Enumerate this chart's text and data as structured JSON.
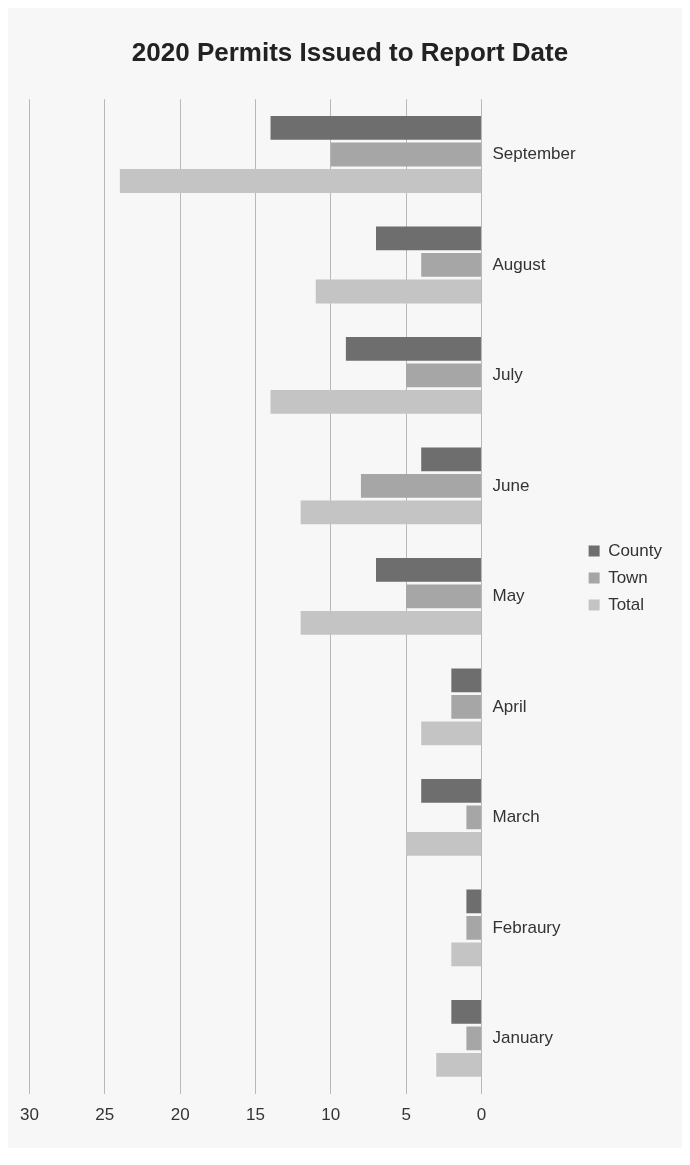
{
  "chart_data": {
    "type": "bar",
    "title": "2020 Permits Issued to Report Date",
    "orientation": "horizontal",
    "categories": [
      "September",
      "August",
      "July",
      "June",
      "May",
      "April",
      "March",
      "Febraury",
      "January"
    ],
    "series": [
      {
        "name": "County",
        "color": "#6e6e6e",
        "values": [
          14,
          7,
          9,
          4,
          7,
          2,
          4,
          1,
          2
        ]
      },
      {
        "name": "Town",
        "color": "#a6a6a6",
        "values": [
          10,
          4,
          5,
          8,
          5,
          2,
          1,
          1,
          1
        ]
      },
      {
        "name": "Total",
        "color": "#c4c4c4",
        "values": [
          24,
          11,
          14,
          12,
          12,
          4,
          5,
          2,
          3
        ]
      }
    ],
    "xlim": [
      30,
      0
    ],
    "xticks": [
      30,
      25,
      20,
      15,
      10,
      5,
      0
    ],
    "grid": "x",
    "legend": "right"
  }
}
